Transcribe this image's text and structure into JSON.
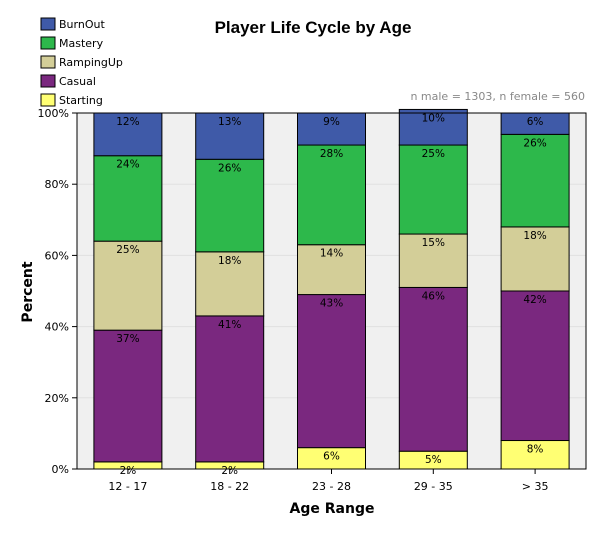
{
  "chart_data": {
    "type": "bar",
    "stacked": true,
    "title": "Player Life Cycle by Age",
    "note": "n male = 1303, n female = 560",
    "xlabel": "Age Range",
    "ylabel": "Percent",
    "ylim": [
      0,
      100
    ],
    "yticks": [
      "0%",
      "20%",
      "40%",
      "60%",
      "80%",
      "100%"
    ],
    "grid": true,
    "legend_position": "top-left",
    "categories": [
      "12 - 17",
      "18 - 22",
      "23 - 28",
      "29 - 35",
      "> 35"
    ],
    "series": [
      {
        "name": "Starting",
        "color": "#ffff73",
        "values": [
          2,
          2,
          6,
          5,
          8
        ],
        "labels": [
          "2%",
          "2%",
          "6%",
          "5%",
          "8%"
        ]
      },
      {
        "name": "Casual",
        "color": "#7a287f",
        "values": [
          37,
          41,
          43,
          46,
          42
        ],
        "labels": [
          "37%",
          "41%",
          "43%",
          "46%",
          "42%"
        ]
      },
      {
        "name": "RampingUp",
        "color": "#d3ce98",
        "values": [
          25,
          18,
          14,
          15,
          18
        ],
        "labels": [
          "25%",
          "18%",
          "14%",
          "15%",
          "18%"
        ]
      },
      {
        "name": "Mastery",
        "color": "#2db84b",
        "values": [
          24,
          26,
          28,
          25,
          26
        ],
        "labels": [
          "24%",
          "26%",
          "28%",
          "25%",
          "26%"
        ]
      },
      {
        "name": "BurnOut",
        "color": "#3f5aa8",
        "values": [
          12,
          13,
          9,
          10,
          6
        ],
        "labels": [
          "12%",
          "13%",
          "9%",
          "10%",
          "6%"
        ]
      }
    ],
    "legend_order": [
      "BurnOut",
      "Mastery",
      "RampingUp",
      "Casual",
      "Starting"
    ]
  }
}
